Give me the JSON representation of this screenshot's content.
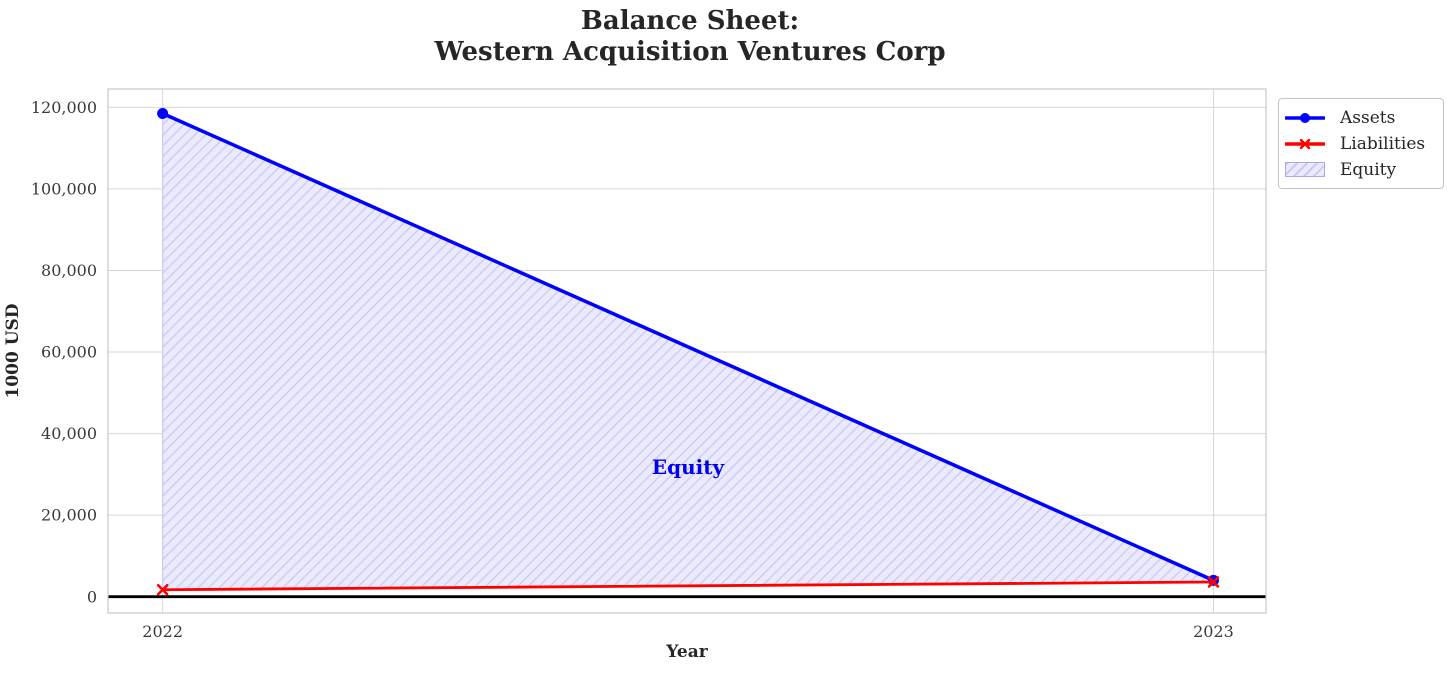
{
  "figure": {
    "title": "Balance Sheet:\nWestern Acquisition Ventures Corp",
    "xlabel": "Year",
    "ylabel": "1000 USD"
  },
  "legend": {
    "items": [
      {
        "label": "Assets",
        "swatch": "line-circle",
        "color": "#0000ff"
      },
      {
        "label": "Liabilities",
        "swatch": "line-x",
        "color": "#ff0000"
      },
      {
        "label": "Equity",
        "swatch": "hatch-patch",
        "color": "#a8a8ea"
      }
    ]
  },
  "chart_data": {
    "type": "line",
    "title": "Balance Sheet: Western Acquisition Ventures Corp",
    "xlabel": "Year",
    "ylabel": "1000 USD",
    "x": [
      2022,
      2023
    ],
    "xtick_labels": [
      "2022",
      "2023"
    ],
    "series": [
      {
        "name": "Assets",
        "values": [
          118500,
          4000
        ],
        "color": "#0000ff",
        "marker": "circle",
        "line_width": 3.5
      },
      {
        "name": "Liabilities",
        "values": [
          1700,
          3600
        ],
        "color": "#ff0000",
        "marker": "x",
        "line_width": 2.8
      }
    ],
    "area": {
      "name": "Equity",
      "between": [
        "Assets",
        "Liabilities"
      ],
      "values": [
        116800,
        400
      ],
      "fill_color": "#eaeafc",
      "hatch_color": "#c9c9f3",
      "hatch_style": "diagonal-forward",
      "annotation": {
        "text": "Equity",
        "x": 2022.5,
        "y": 32000,
        "color": "#0000ee"
      }
    },
    "yticks": [
      0,
      20000,
      40000,
      60000,
      80000,
      100000,
      120000
    ],
    "ytick_labels": [
      "0",
      "20,000",
      "40,000",
      "60,000",
      "80,000",
      "100,000",
      "120,000"
    ],
    "xlim": [
      2021.948,
      2023.05
    ],
    "ylim": [
      -4000,
      124500
    ],
    "grid": true,
    "legend_position": "outside upper right",
    "zero_line_color": "#000000",
    "grid_color": "#d6d6d6",
    "border_color": "#c9c9c9",
    "tick_label_color": "#3a3a3a"
  }
}
